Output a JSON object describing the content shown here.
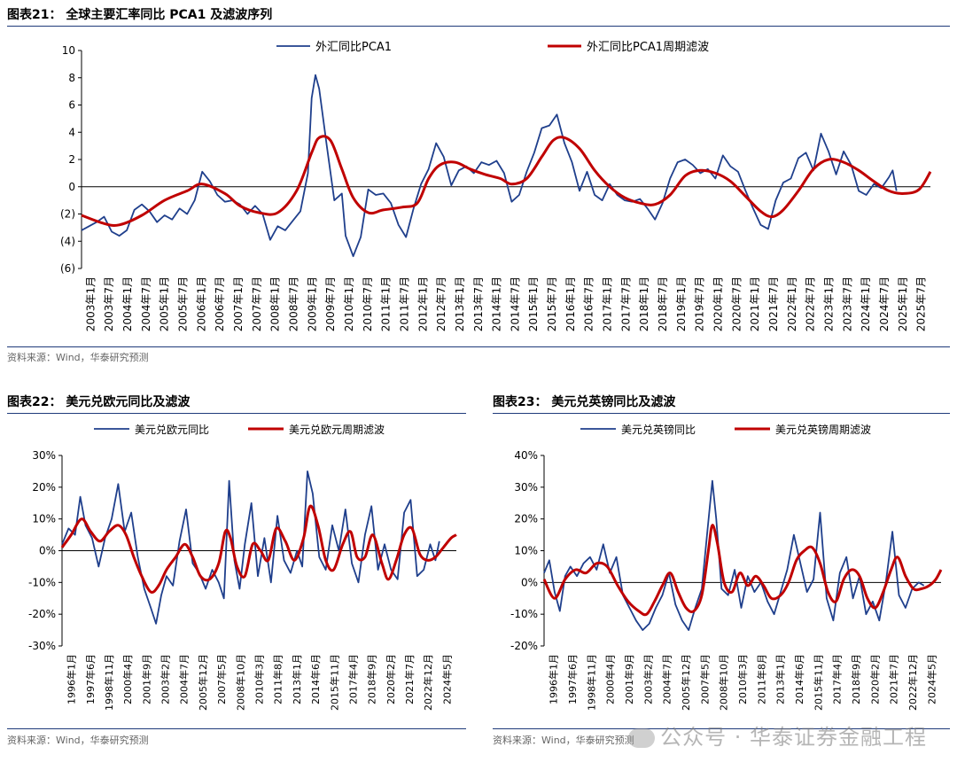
{
  "panels": [
    {
      "title": "图表21：  全球主要汇率同比 PCA1 及滤波序列",
      "source": "资料来源：Wind，华泰研究预测"
    },
    {
      "title": "图表22：  美元兑欧元同比及滤波",
      "source": "资料来源：Wind，华泰研究预测"
    },
    {
      "title": "图表23：  美元兑英镑同比及滤波",
      "source": "资料来源：Wind，华泰研究预测"
    }
  ],
  "watermark": "公众号 · 华泰证券金融工程",
  "colors": {
    "raw": "#1f3f8c",
    "filter": "#c00000",
    "rule": "#1f3a7a"
  },
  "chart_data": [
    {
      "type": "line",
      "ylim": [
        -6,
        10
      ],
      "yticks": [
        10,
        8,
        6,
        4,
        2,
        0,
        -2,
        -4,
        -6
      ],
      "ytick_labels": [
        "10",
        "8",
        "6",
        "4",
        "2",
        "0",
        "(2)",
        "(4)",
        "(6)"
      ],
      "x_start": 2003.0,
      "x_end": 2025.5,
      "xtick_labels": [
        "2003年1月",
        "2003年7月",
        "2004年1月",
        "2004年7月",
        "2005年1月",
        "2005年7月",
        "2006年1月",
        "2006年7月",
        "2007年1月",
        "2007年7月",
        "2008年1月",
        "2008年7月",
        "2009年1月",
        "2009年7月",
        "2010年1月",
        "2010年7月",
        "2011年1月",
        "2011年7月",
        "2012年1月",
        "2012年7月",
        "2013年1月",
        "2013年7月",
        "2014年1月",
        "2014年7月",
        "2015年1月",
        "2015年7月",
        "2016年1月",
        "2016年7月",
        "2017年1月",
        "2017年7月",
        "2018年1月",
        "2018年7月",
        "2019年1月",
        "2019年7月",
        "2020年1月",
        "2020年7月",
        "2021年1月",
        "2021年7月",
        "2022年1月",
        "2022年7月",
        "2023年1月",
        "2023年7月",
        "2024年1月",
        "2024年7月",
        "2025年1月",
        "2025年7月"
      ],
      "series": [
        {
          "name": "外汇同比PCA1",
          "x": [
            2003.0,
            2003.2,
            2003.4,
            2003.6,
            2003.8,
            2004.0,
            2004.2,
            2004.4,
            2004.6,
            2004.8,
            2005.0,
            2005.2,
            2005.4,
            2005.6,
            2005.8,
            2006.0,
            2006.2,
            2006.4,
            2006.6,
            2006.8,
            2007.0,
            2007.2,
            2007.4,
            2007.6,
            2007.8,
            2008.0,
            2008.2,
            2008.4,
            2008.6,
            2008.8,
            2009.0,
            2009.1,
            2009.2,
            2009.3,
            2009.5,
            2009.7,
            2009.9,
            2010.0,
            2010.2,
            2010.4,
            2010.6,
            2010.8,
            2011.0,
            2011.2,
            2011.4,
            2011.6,
            2011.8,
            2012.0,
            2012.2,
            2012.4,
            2012.6,
            2012.8,
            2013.0,
            2013.2,
            2013.4,
            2013.6,
            2013.8,
            2014.0,
            2014.2,
            2014.4,
            2014.6,
            2014.8,
            2015.0,
            2015.2,
            2015.4,
            2015.6,
            2015.8,
            2016.0,
            2016.2,
            2016.4,
            2016.6,
            2016.8,
            2017.0,
            2017.2,
            2017.4,
            2017.6,
            2017.8,
            2018.0,
            2018.2,
            2018.4,
            2018.6,
            2018.8,
            2019.0,
            2019.2,
            2019.4,
            2019.6,
            2019.8,
            2020.0,
            2020.2,
            2020.4,
            2020.6,
            2020.8,
            2021.0,
            2021.2,
            2021.4,
            2021.6,
            2021.8,
            2022.0,
            2022.2,
            2022.4,
            2022.6,
            2022.8,
            2023.0,
            2023.2,
            2023.4,
            2023.6,
            2023.8,
            2024.0,
            2024.2,
            2024.4,
            2024.5,
            2024.6
          ],
          "y": [
            -3.2,
            -2.9,
            -2.6,
            -2.2,
            -3.3,
            -3.6,
            -3.2,
            -1.7,
            -1.3,
            -1.8,
            -2.6,
            -2.1,
            -2.4,
            -1.6,
            -2.0,
            -1.0,
            1.1,
            0.4,
            -0.6,
            -1.1,
            -1.0,
            -1.3,
            -2.0,
            -1.4,
            -2.0,
            -3.9,
            -2.9,
            -3.2,
            -2.5,
            -1.8,
            1.0,
            6.5,
            8.2,
            7.2,
            3.0,
            -1.0,
            -0.5,
            -3.6,
            -5.1,
            -3.7,
            -0.2,
            -0.6,
            -0.5,
            -1.2,
            -2.8,
            -3.7,
            -1.6,
            0.2,
            1.3,
            3.2,
            2.2,
            0.1,
            1.2,
            1.5,
            1.0,
            1.8,
            1.6,
            1.9,
            1.0,
            -1.1,
            -0.6,
            1.1,
            2.5,
            4.3,
            4.5,
            5.3,
            3.2,
            1.8,
            -0.3,
            1.1,
            -0.6,
            -1.0,
            0.2,
            -0.6,
            -1.0,
            -1.1,
            -0.9,
            -1.6,
            -2.4,
            -1.2,
            0.6,
            1.8,
            2.0,
            1.6,
            1.0,
            1.3,
            0.6,
            2.3,
            1.5,
            1.1,
            -0.3,
            -1.6,
            -2.8,
            -3.1,
            -1.0,
            0.3,
            0.6,
            2.1,
            2.5,
            1.2,
            3.9,
            2.6,
            0.9,
            2.6,
            1.6,
            -0.3,
            -0.6,
            0.2,
            -0.1,
            0.7,
            1.2,
            -0.3
          ]
        },
        {
          "name": "外汇同比PCA1周期滤波",
          "x": [
            2003.0,
            2003.6,
            2004.0,
            2004.6,
            2005.2,
            2005.8,
            2006.2,
            2006.8,
            2007.2,
            2007.7,
            2008.2,
            2008.7,
            2009.1,
            2009.3,
            2009.6,
            2009.9,
            2010.2,
            2010.6,
            2011.0,
            2011.5,
            2011.9,
            2012.2,
            2012.5,
            2012.9,
            2013.3,
            2013.7,
            2014.1,
            2014.4,
            2014.8,
            2015.2,
            2015.5,
            2015.8,
            2016.2,
            2016.6,
            2017.0,
            2017.4,
            2017.8,
            2018.2,
            2018.6,
            2019.0,
            2019.4,
            2019.8,
            2020.2,
            2020.6,
            2021.0,
            2021.3,
            2021.6,
            2022.0,
            2022.4,
            2022.8,
            2023.2,
            2023.6,
            2024.0,
            2024.4,
            2024.8,
            2025.2,
            2025.5
          ],
          "y": [
            -2.1,
            -2.7,
            -2.8,
            -2.1,
            -1.0,
            -0.3,
            0.2,
            -0.5,
            -1.4,
            -1.9,
            -1.9,
            -0.3,
            2.5,
            3.6,
            3.4,
            1.3,
            -0.8,
            -1.9,
            -1.7,
            -1.5,
            -1.2,
            0.6,
            1.6,
            1.8,
            1.3,
            0.9,
            0.6,
            0.2,
            0.6,
            2.2,
            3.4,
            3.6,
            2.8,
            1.2,
            0.0,
            -0.8,
            -1.2,
            -1.3,
            -0.6,
            0.8,
            1.2,
            1.0,
            0.4,
            -0.7,
            -1.8,
            -2.2,
            -1.7,
            -0.3,
            1.3,
            2.0,
            1.8,
            1.2,
            0.4,
            -0.3,
            -0.5,
            -0.2,
            1.1
          ]
        }
      ]
    },
    {
      "type": "line",
      "ylim": [
        -30,
        30
      ],
      "yticks": [
        30,
        20,
        10,
        0,
        -10,
        -20,
        -30
      ],
      "ytick_labels": [
        "30%",
        "20%",
        "10%",
        "0%",
        "-10%",
        "-20%",
        "-30%"
      ],
      "x_start": 1996.0,
      "x_end": 2026.2,
      "xtick_labels": [
        "1996年1月",
        "1997年6月",
        "1998年11月",
        "2000年4月",
        "2001年9月",
        "2003年2月",
        "2004年7月",
        "2005年12月",
        "2007年5月",
        "2008年10月",
        "2010年3月",
        "2011年8月",
        "2013年1月",
        "2014年6月",
        "2015年11月",
        "2017年4月",
        "2018年9月",
        "2020年2月",
        "2021年7月",
        "2022年12月",
        "2024年5月"
      ],
      "series": [
        {
          "name": "美元兑欧元同比",
          "x": [
            1996.0,
            1996.5,
            1997.0,
            1997.4,
            1997.8,
            1998.3,
            1998.8,
            1999.3,
            1999.8,
            2000.3,
            2000.8,
            2001.3,
            2001.8,
            2002.3,
            2002.8,
            2003.2,
            2003.6,
            2004.0,
            2004.5,
            2005.0,
            2005.5,
            2006.0,
            2006.5,
            2007.0,
            2007.5,
            2008.0,
            2008.4,
            2008.8,
            2009.2,
            2009.6,
            2010.0,
            2010.5,
            2011.0,
            2011.5,
            2012.0,
            2012.5,
            2013.0,
            2013.5,
            2014.0,
            2014.4,
            2014.8,
            2015.2,
            2015.7,
            2016.2,
            2016.7,
            2017.2,
            2017.7,
            2018.2,
            2018.7,
            2019.2,
            2019.7,
            2020.2,
            2020.7,
            2021.2,
            2021.7,
            2022.2,
            2022.7,
            2023.2,
            2023.7,
            2024.2,
            2024.6,
            2024.9
          ],
          "y": [
            2,
            7,
            5,
            17,
            8,
            4,
            -5,
            4,
            10,
            21,
            6,
            12,
            -2,
            -12,
            -18,
            -23,
            -14,
            -8,
            -11,
            3,
            13,
            -4,
            -7,
            -12,
            -6,
            -10,
            -15,
            22,
            -3,
            -12,
            2,
            15,
            -8,
            4,
            -10,
            11,
            -3,
            -7,
            0,
            -5,
            25,
            18,
            -2,
            -6,
            8,
            0,
            13,
            -4,
            -10,
            5,
            14,
            -6,
            2,
            -6,
            -9,
            12,
            16,
            -8,
            -6,
            2,
            -3,
            3
          ]
        },
        {
          "name": "美元兑欧元周期滤波",
          "x": [
            1996.0,
            1996.7,
            1997.5,
            1998.2,
            1998.9,
            1999.6,
            2000.3,
            2000.9,
            2001.5,
            2002.1,
            2002.8,
            2003.4,
            2004.0,
            2004.7,
            2005.4,
            2006.0,
            2006.6,
            2007.3,
            2008.0,
            2008.5,
            2008.9,
            2009.4,
            2010.0,
            2010.6,
            2011.2,
            2011.8,
            2012.4,
            2013.1,
            2013.8,
            2014.5,
            2015.0,
            2015.6,
            2016.2,
            2016.8,
            2017.5,
            2018.1,
            2018.6,
            2019.2,
            2019.8,
            2020.5,
            2021.0,
            2021.6,
            2022.2,
            2022.8,
            2023.4,
            2024.0,
            2024.6,
            2025.2,
            2025.8,
            2026.2
          ],
          "y": [
            1,
            5,
            10,
            6,
            3,
            6,
            8,
            5,
            -2,
            -8,
            -13,
            -11,
            -6,
            -2,
            2,
            -2,
            -8,
            -9,
            -4,
            6,
            4,
            -5,
            -8,
            2,
            0,
            -3,
            7,
            3,
            -3,
            4,
            14,
            8,
            -3,
            -6,
            2,
            6,
            -2,
            -2,
            5,
            -4,
            -9,
            -3,
            5,
            7,
            -1,
            -3,
            -2,
            1,
            4,
            5
          ]
        }
      ]
    },
    {
      "type": "line",
      "ylim": [
        -20,
        40
      ],
      "yticks": [
        40,
        30,
        20,
        10,
        0,
        -10,
        -20
      ],
      "ytick_labels": [
        "40%",
        "30%",
        "20%",
        "10%",
        "0%",
        "-10%",
        "-20%"
      ],
      "x_start": 1996.0,
      "x_end": 2026.2,
      "xtick_labels": [
        "1996年1月",
        "1997年6月",
        "1998年11月",
        "2000年4月",
        "2001年9月",
        "2003年2月",
        "2004年7月",
        "2005年12月",
        "2007年5月",
        "2008年10月",
        "2010年3月",
        "2011年8月",
        "2013年1月",
        "2014年6月",
        "2015年11月",
        "2017年4月",
        "2018年9月",
        "2020年2月",
        "2021年7月",
        "2022年12月",
        "2024年5月"
      ],
      "series": [
        {
          "name": "美元兑英镑同比",
          "x": [
            1996.0,
            1996.4,
            1996.8,
            1997.2,
            1997.6,
            1998.0,
            1998.5,
            1999.0,
            1999.5,
            2000.0,
            2000.5,
            2001.0,
            2001.5,
            2002.0,
            2002.5,
            2003.0,
            2003.5,
            2004.0,
            2004.5,
            2005.0,
            2005.5,
            2006.0,
            2006.5,
            2007.0,
            2007.5,
            2008.0,
            2008.4,
            2008.8,
            2009.1,
            2009.5,
            2010.0,
            2010.5,
            2011.0,
            2011.5,
            2012.0,
            2012.5,
            2013.0,
            2013.5,
            2014.0,
            2014.5,
            2015.0,
            2015.5,
            2016.0,
            2016.5,
            2017.0,
            2017.5,
            2018.0,
            2018.5,
            2019.0,
            2019.5,
            2020.0,
            2020.5,
            2021.0,
            2021.5,
            2022.0,
            2022.5,
            2023.0,
            2023.5,
            2024.0,
            2024.5,
            2024.9
          ],
          "y": [
            3,
            7,
            -3,
            -9,
            2,
            5,
            2,
            6,
            8,
            4,
            12,
            3,
            8,
            -4,
            -8,
            -12,
            -15,
            -13,
            -8,
            -4,
            3,
            -7,
            -12,
            -15,
            -8,
            -2,
            15,
            32,
            20,
            -2,
            -4,
            4,
            -8,
            2,
            -3,
            0,
            -6,
            -10,
            -3,
            4,
            15,
            6,
            -3,
            1,
            22,
            -5,
            -12,
            3,
            8,
            -5,
            2,
            -10,
            -6,
            -12,
            0,
            16,
            -4,
            -8,
            -2,
            0,
            -1
          ]
        },
        {
          "name": "美元兑英镑周期滤波",
          "x": [
            1996.0,
            1996.8,
            1997.6,
            1998.4,
            1999.2,
            2000.0,
            2000.8,
            2001.6,
            2002.4,
            2003.2,
            2003.8,
            2004.4,
            2005.0,
            2005.6,
            2006.2,
            2006.8,
            2007.4,
            2008.0,
            2008.5,
            2008.8,
            2009.2,
            2009.7,
            2010.3,
            2010.9,
            2011.5,
            2012.1,
            2012.7,
            2013.3,
            2014.0,
            2014.6,
            2015.2,
            2015.8,
            2016.4,
            2017.0,
            2017.6,
            2018.2,
            2018.8,
            2019.4,
            2020.0,
            2020.6,
            2021.2,
            2021.8,
            2022.4,
            2022.9,
            2023.5,
            2024.1,
            2024.7,
            2025.3,
            2025.8,
            2026.2
          ],
          "y": [
            1,
            -5,
            1,
            4,
            3,
            6,
            5,
            -1,
            -6,
            -9,
            -10,
            -6,
            -1,
            3,
            -3,
            -8,
            -9,
            -4,
            10,
            18,
            12,
            0,
            -3,
            3,
            -1,
            2,
            -1,
            -5,
            -4,
            0,
            7,
            10,
            11,
            6,
            -3,
            -6,
            1,
            4,
            2,
            -5,
            -8,
            -3,
            4,
            8,
            2,
            -2,
            -2,
            -1,
            1,
            4
          ]
        }
      ]
    }
  ]
}
